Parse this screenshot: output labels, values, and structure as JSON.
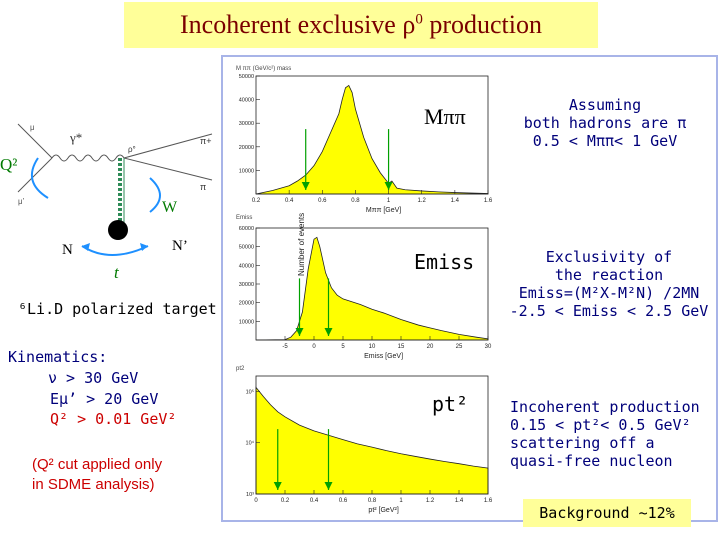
{
  "title": "Incoherent exclusive ρ",
  "title_sup": "0",
  "title_tail": " production",
  "diagram": {
    "gamma_star": "γ*",
    "pi_plus": "π+",
    "Q2": "Q²",
    "W": "W",
    "N_in": "N",
    "N_out": "N’",
    "t": "t",
    "mu_in": "μ",
    "mu_out": "μ’",
    "rho": "ρ°",
    "pi_minus": "π"
  },
  "target": "⁶Li.D polarized target",
  "kinematics": {
    "heading": "Kinematics:",
    "nu": "ν > 30 GeV",
    "emu": "Eμ’ > 20 GeV",
    "q2": "Q² > 0.01 GeV²",
    "note_line1": "(Q² cut applied only",
    "note_line2": "in SDME analysis)"
  },
  "plot_labels": {
    "m_label": "Mππ",
    "e_label": "Emiss",
    "pt_label": "pt²",
    "y_axis": "Number of events",
    "p1_title": "M  ππ  (GeV/c²)  mass",
    "p1_xlabel": "Mππ [GeV]",
    "p2_xlabel": "Emiss [GeV]",
    "p3_xlabel": "pt² [GeV²]",
    "p2_corner": "Emiss",
    "p3_corner": "pt2"
  },
  "notes": {
    "assuming_1": "Assuming",
    "assuming_2": "both hadrons are π",
    "assuming_3": "0.5 < Mππ< 1 GeV",
    "excl_1": "Exclusivity of",
    "excl_2": "the reaction",
    "excl_3": "Emiss=(M²X-M²N) /2MN",
    "excl_4": "-2.5 < Emiss < 2.5 GeV",
    "inc_1": "Incoherent production",
    "inc_2": "0.15 < pt²< 0.5 GeV²",
    "inc_3": "scattering off a",
    "inc_4": "quasi-free nucleon"
  },
  "background": "Background ~12%",
  "colors": {
    "title": "#7a0000",
    "notes": "#00007a",
    "red": "#cc0000",
    "fill": "#ffff00",
    "frame": "#a8b4e8",
    "green": "#00a000"
  },
  "chart_data": [
    {
      "type": "area",
      "xlabel": "Mππ [GeV]",
      "ylabel": "Number of events",
      "xlim": [
        0.2,
        1.6
      ],
      "ylim": [
        0,
        50000
      ],
      "x_ticks": [
        "0.2",
        "0.4",
        "0.6",
        "0.8",
        "1",
        "1.2",
        "1.4",
        "1.6"
      ],
      "y_ticks": [
        "10000",
        "20000",
        "30000",
        "40000",
        "50000"
      ],
      "x": [
        0.2,
        0.3,
        0.4,
        0.45,
        0.5,
        0.55,
        0.6,
        0.65,
        0.7,
        0.72,
        0.74,
        0.76,
        0.78,
        0.8,
        0.85,
        0.9,
        0.95,
        1.0,
        1.02,
        1.05,
        1.1,
        1.2,
        1.3,
        1.4,
        1.5,
        1.6
      ],
      "y": [
        0,
        1500,
        3500,
        5500,
        8000,
        12000,
        18000,
        26000,
        34000,
        40000,
        45000,
        46000,
        43000,
        36000,
        24000,
        15000,
        9000,
        4500,
        5500,
        2500,
        1800,
        1300,
        900,
        600,
        400,
        200
      ],
      "cuts": [
        0.5,
        1.0
      ]
    },
    {
      "type": "area",
      "xlabel": "Emiss [GeV]",
      "ylabel": "Number of events",
      "xlim": [
        -10,
        30
      ],
      "ylim": [
        0,
        60000
      ],
      "x_ticks": [
        "-5",
        "0",
        "5",
        "10",
        "15",
        "20",
        "25",
        "30"
      ],
      "y_ticks": [
        "10000",
        "20000",
        "30000",
        "40000",
        "50000",
        "60000"
      ],
      "x": [
        -10,
        -5,
        -4,
        -3,
        -2,
        -1,
        0,
        0.5,
        1,
        2,
        3,
        4,
        5,
        6,
        8,
        10,
        12,
        15,
        18,
        20,
        22,
        25,
        28,
        30
      ],
      "y": [
        0,
        200,
        1500,
        5000,
        15000,
        38000,
        54000,
        55000,
        50000,
        36000,
        28000,
        24000,
        22000,
        21000,
        19000,
        16500,
        14500,
        11000,
        8000,
        6500,
        5000,
        3000,
        1500,
        600
      ],
      "cuts": [
        -2.5,
        2.5
      ]
    },
    {
      "type": "area",
      "xlabel": "pt² [GeV²]",
      "ylabel": "Number of events",
      "xlim": [
        0,
        1.6
      ],
      "ylim": [
        1000,
        200000
      ],
      "yscale": "log",
      "x_ticks": [
        "0",
        "0.2",
        "0.4",
        "0.6",
        "0.8",
        "1",
        "1.2",
        "1.4",
        "1.6"
      ],
      "y_ticks": [
        "10³",
        "10⁴",
        "10⁵"
      ],
      "x": [
        0,
        0.05,
        0.1,
        0.15,
        0.2,
        0.3,
        0.4,
        0.5,
        0.6,
        0.7,
        0.8,
        0.9,
        1.0,
        1.1,
        1.2,
        1.3,
        1.4,
        1.5,
        1.6
      ],
      "y": [
        120000,
        80000,
        55000,
        40000,
        32000,
        22000,
        17000,
        14000,
        11500,
        9500,
        8200,
        7000,
        6100,
        5400,
        4800,
        4300,
        3900,
        3500,
        3200
      ],
      "cuts": [
        0.15,
        0.5
      ]
    }
  ]
}
